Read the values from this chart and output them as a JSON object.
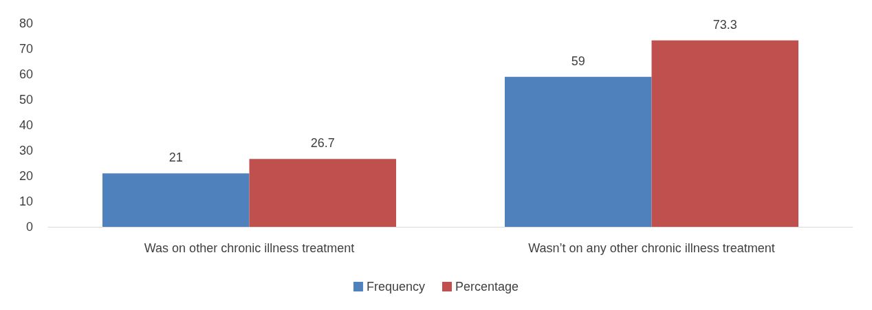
{
  "chart_data": {
    "type": "bar",
    "categories": [
      "Was on other chronic illness treatment",
      "Wasn’t on any other chronic illness treatment"
    ],
    "series": [
      {
        "name": "Frequency",
        "color": "#4f81bd",
        "values": [
          21,
          59
        ]
      },
      {
        "name": "Percentage",
        "color": "#c0504d",
        "values": [
          26.7,
          73.3
        ]
      }
    ],
    "ylim": [
      0,
      80
    ],
    "yticks": [
      0,
      10,
      20,
      30,
      40,
      50,
      60,
      70,
      80
    ],
    "grid": false,
    "legend": "bottom",
    "data_labels": true
  }
}
